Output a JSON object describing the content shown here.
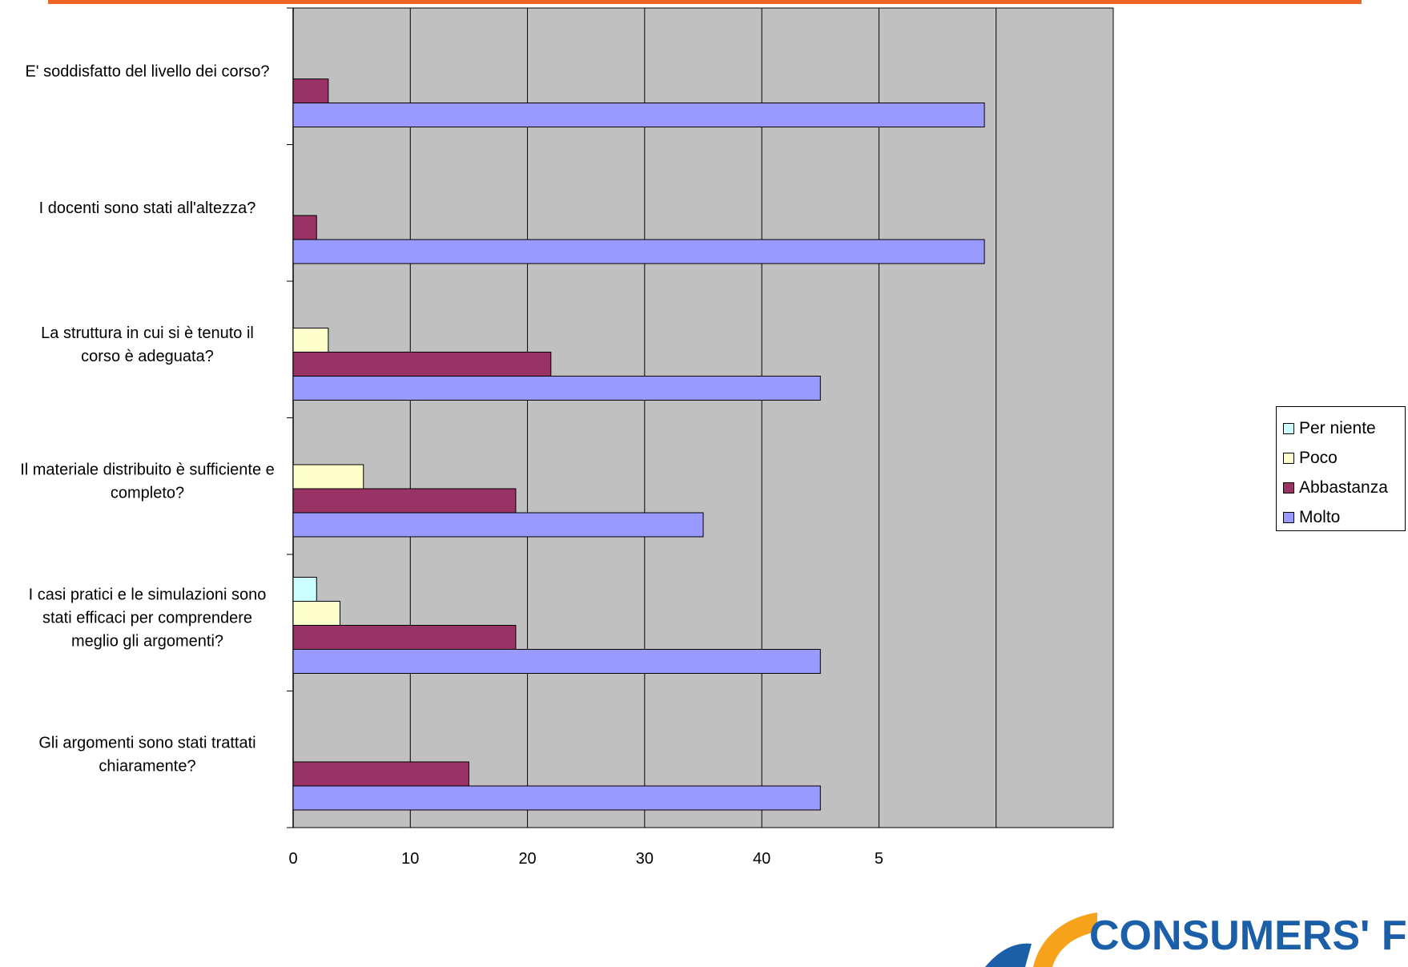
{
  "colors": {
    "accent_rule": "#f26522",
    "plot_bg": "#c0c0c0",
    "per_niente": "#ccffff",
    "poco": "#ffffcc",
    "abbastanza": "#993366",
    "molto": "#9999ff"
  },
  "legend": {
    "placement": "right",
    "items": [
      {
        "label": "Per niente",
        "color": "#ccffff"
      },
      {
        "label": "Poco",
        "color": "#ffffcc"
      },
      {
        "label": "Abbastanza",
        "color": "#993366"
      },
      {
        "label": "Molto",
        "color": "#9999ff"
      }
    ]
  },
  "logo": {
    "text": "CONSUMERS' FO"
  },
  "chart_data": {
    "type": "bar",
    "orientation": "horizontal",
    "title": "",
    "xlabel": "",
    "ylabel": "",
    "xlim": [
      0,
      70
    ],
    "grid": true,
    "x_ticks": [
      "0",
      "10",
      "20",
      "30",
      "40",
      "5"
    ],
    "categories": [
      [
        "E' soddisfatto del livello dei corso?"
      ],
      [
        "I docenti sono stati all'altezza?"
      ],
      [
        "La struttura in cui si è tenuto il",
        "corso è adeguata?"
      ],
      [
        "Il materiale distribuito è sufficiente e",
        "completo?"
      ],
      [
        "I casi pratici e le simulazioni sono",
        "stati efficaci per comprendere",
        "meglio gli argomenti?"
      ],
      [
        "Gli argomenti sono stati trattati",
        "chiaramente?"
      ]
    ],
    "series": [
      {
        "name": "Per niente",
        "values": [
          0,
          0,
          0,
          0,
          2,
          0
        ]
      },
      {
        "name": "Poco",
        "values": [
          0,
          0,
          3,
          6,
          4,
          0
        ]
      },
      {
        "name": "Abbastanza",
        "values": [
          3,
          2,
          22,
          19,
          19,
          15
        ]
      },
      {
        "name": "Molto",
        "values": [
          59,
          59,
          45,
          35,
          45,
          45
        ]
      }
    ]
  }
}
